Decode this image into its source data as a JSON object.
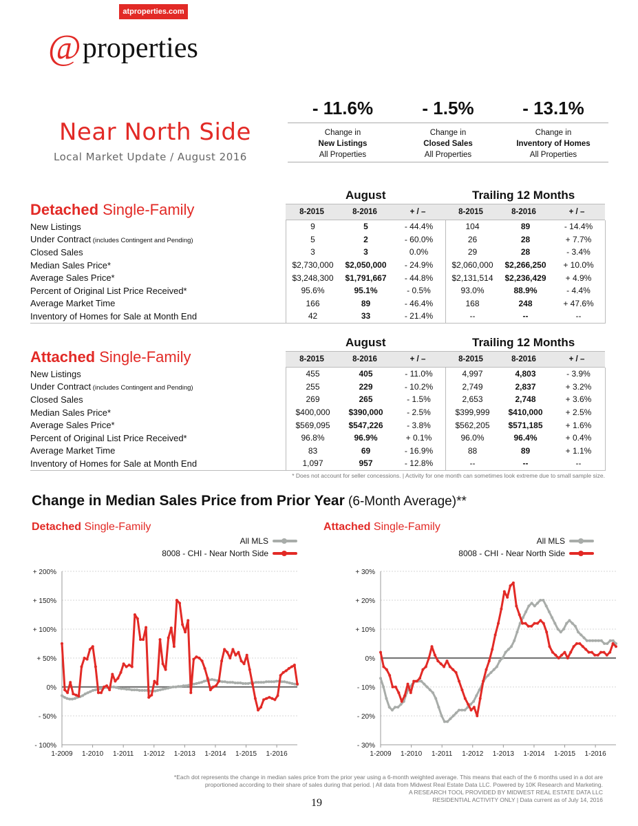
{
  "header": {
    "url": "atproperties.com",
    "logo_at": "@",
    "logo_word": "properties"
  },
  "summary": [
    {
      "value": "- 11.6%",
      "line1": "Change in",
      "line2": "New Listings",
      "line3": "All Properties"
    },
    {
      "value": "- 1.5%",
      "line1": "Change in",
      "line2": "Closed Sales",
      "line3": "All Properties"
    },
    {
      "value": "- 13.1%",
      "line1": "Change in",
      "line2": "Inventory of Homes",
      "line3": "All Properties"
    }
  ],
  "area": {
    "title": "Near North Side",
    "subtitle": "Local Market Update / August 2016"
  },
  "groups": {
    "month": "August",
    "trailing": "Trailing 12 Months"
  },
  "columns": [
    "8-2015",
    "8-2016",
    "+ / –",
    "8-2015",
    "8-2016",
    "+ / –"
  ],
  "detached": {
    "title_bold": "Detached",
    "title_rest": " Single-Family",
    "rows": [
      {
        "label": "New Listings",
        "note": "",
        "v": [
          "9",
          "5",
          "- 44.4%",
          "104",
          "89",
          "- 14.4%"
        ]
      },
      {
        "label": "Under Contract",
        "note": " (includes Contingent and Pending)",
        "v": [
          "5",
          "2",
          "- 60.0%",
          "26",
          "28",
          "+ 7.7%"
        ]
      },
      {
        "label": "Closed Sales",
        "note": "",
        "v": [
          "3",
          "3",
          "0.0%",
          "29",
          "28",
          "- 3.4%"
        ]
      },
      {
        "label": "Median Sales Price*",
        "note": "",
        "v": [
          "$2,730,000",
          "$2,050,000",
          "- 24.9%",
          "$2,060,000",
          "$2,266,250",
          "+ 10.0%"
        ]
      },
      {
        "label": "Average Sales Price*",
        "note": "",
        "v": [
          "$3,248,300",
          "$1,791,667",
          "- 44.8%",
          "$2,131,514",
          "$2,236,429",
          "+ 4.9%"
        ]
      },
      {
        "label": "Percent of Original List Price Received*",
        "note": "",
        "v": [
          "95.6%",
          "95.1%",
          "- 0.5%",
          "93.0%",
          "88.9%",
          "- 4.4%"
        ]
      },
      {
        "label": "Average Market Time",
        "note": "",
        "v": [
          "166",
          "89",
          "- 46.4%",
          "168",
          "248",
          "+ 47.6%"
        ]
      },
      {
        "label": "Inventory of Homes for Sale at Month End",
        "note": "",
        "v": [
          "42",
          "33",
          "- 21.4%",
          "--",
          "--",
          "--"
        ]
      }
    ]
  },
  "attached": {
    "title_bold": "Attached",
    "title_rest": " Single-Family",
    "rows": [
      {
        "label": "New Listings",
        "note": "",
        "v": [
          "455",
          "405",
          "- 11.0%",
          "4,997",
          "4,803",
          "- 3.9%"
        ]
      },
      {
        "label": "Under Contract",
        "note": " (includes Contingent and Pending)",
        "v": [
          "255",
          "229",
          "- 10.2%",
          "2,749",
          "2,837",
          "+ 3.2%"
        ]
      },
      {
        "label": "Closed Sales",
        "note": "",
        "v": [
          "269",
          "265",
          "- 1.5%",
          "2,653",
          "2,748",
          "+ 3.6%"
        ]
      },
      {
        "label": "Median Sales Price*",
        "note": "",
        "v": [
          "$400,000",
          "$390,000",
          "- 2.5%",
          "$399,999",
          "$410,000",
          "+ 2.5%"
        ]
      },
      {
        "label": "Average Sales Price*",
        "note": "",
        "v": [
          "$569,095",
          "$547,226",
          "- 3.8%",
          "$562,205",
          "$571,185",
          "+ 1.6%"
        ]
      },
      {
        "label": "Percent of Original List Price Received*",
        "note": "",
        "v": [
          "96.8%",
          "96.9%",
          "+ 0.1%",
          "96.0%",
          "96.4%",
          "+ 0.4%"
        ]
      },
      {
        "label": "Average Market Time",
        "note": "",
        "v": [
          "83",
          "69",
          "- 16.9%",
          "88",
          "89",
          "+ 1.1%"
        ]
      },
      {
        "label": "Inventory of Homes for Sale at Month End",
        "note": "",
        "v": [
          "1,097",
          "957",
          "- 12.8%",
          "--",
          "--",
          "--"
        ]
      }
    ]
  },
  "table_note": "* Does not account for seller concessions.  |  Activity for one month can sometimes look extreme due to small sample size.",
  "charts_section": {
    "title": "Change in Median Sales Price from Prior Year",
    "title_suffix": " (6-Month Average)**"
  },
  "legend": {
    "all_mls": "All MLS",
    "local": "8008 - CHI - Near North Side"
  },
  "colors": {
    "accent": "#e22a26",
    "all_mls": "#a8aca9",
    "axis": "#777777"
  },
  "chart_data": [
    {
      "type": "line",
      "title_bold": "Detached",
      "title_rest": " Single-Family",
      "ylim": [
        -100,
        200
      ],
      "yticks": [
        200,
        150,
        100,
        50,
        0,
        -50,
        -100
      ],
      "ytick_labels": [
        "+ 200%",
        "+ 150%",
        "+ 100%",
        "+ 50%",
        "0%",
        "- 50%",
        "- 100%"
      ],
      "xlim": [
        2009,
        2016.67
      ],
      "xticks": [
        2009,
        2010,
        2011,
        2012,
        2013,
        2014,
        2015,
        2016
      ],
      "xtick_labels": [
        "1-2009",
        "1-2010",
        "1-2011",
        "1-2012",
        "1-2013",
        "1-2014",
        "1-2015",
        "1-2016"
      ],
      "series": [
        {
          "name": "All MLS",
          "color": "#a8aca9",
          "values": [
            -15,
            -18,
            -20,
            -21,
            -21,
            -20,
            -18,
            -17,
            -15,
            -12,
            -10,
            -8,
            -6,
            -5,
            -4,
            -3,
            -2,
            -1,
            -1,
            0,
            0,
            -1,
            -2,
            -3,
            -3,
            -4,
            -4,
            -5,
            -5,
            -5,
            -6,
            -6,
            -6,
            -6,
            -7,
            -7,
            -7,
            -6,
            -5,
            -4,
            -3,
            -2,
            -1,
            0,
            0,
            1,
            1,
            2,
            2,
            3,
            4,
            5,
            6,
            7,
            8,
            10,
            11,
            12,
            13,
            12,
            11,
            10,
            9,
            9,
            8,
            8,
            8,
            7,
            7,
            7,
            6,
            6,
            6,
            7,
            7,
            8,
            8,
            8,
            8,
            9,
            9,
            9,
            9,
            10,
            10,
            9,
            9,
            8,
            7,
            6,
            5,
            4
          ]
        },
        {
          "name": "8008 - CHI - Near North Side",
          "color": "#e22a26",
          "values": [
            75,
            -5,
            -10,
            8,
            -12,
            -14,
            -16,
            35,
            50,
            48,
            65,
            70,
            35,
            -10,
            -10,
            0,
            2,
            -5,
            22,
            10,
            15,
            25,
            40,
            35,
            38,
            35,
            125,
            118,
            82,
            82,
            103,
            -18,
            -14,
            10,
            5,
            82,
            40,
            30,
            85,
            102,
            70,
            150,
            145,
            108,
            95,
            115,
            -10,
            48,
            52,
            50,
            45,
            32,
            15,
            -5,
            0,
            2,
            10,
            45,
            65,
            60,
            50,
            65,
            55,
            60,
            45,
            40,
            55,
            30,
            5,
            -20,
            -40,
            -35,
            -22,
            -20,
            -18,
            -20,
            -22,
            -15,
            20,
            25,
            28,
            32,
            35,
            38,
            5
          ]
        }
      ]
    },
    {
      "type": "line",
      "title_bold": "Attached",
      "title_rest": " Single-Family",
      "ylim": [
        -30,
        30
      ],
      "yticks": [
        30,
        20,
        10,
        0,
        -10,
        -20,
        -30
      ],
      "ytick_labels": [
        "+ 30%",
        "+ 20%",
        "+ 10%",
        "0%",
        "- 10%",
        "- 20%",
        "- 30%"
      ],
      "xlim": [
        2009,
        2016.67
      ],
      "xticks": [
        2009,
        2010,
        2011,
        2012,
        2013,
        2014,
        2015,
        2016
      ],
      "xtick_labels": [
        "1-2009",
        "1-2010",
        "1-2011",
        "1-2012",
        "1-2013",
        "1-2014",
        "1-2015",
        "1-2016"
      ],
      "series": [
        {
          "name": "All MLS",
          "color": "#a8aca9",
          "values": [
            -7,
            -10,
            -14,
            -17,
            -18,
            -17,
            -17,
            -16,
            -15,
            -12,
            -10,
            -9,
            -8,
            -8,
            -8,
            -9,
            -10,
            -11,
            -12,
            -14,
            -17,
            -20,
            -22,
            -22,
            -21,
            -20,
            -19,
            -18,
            -18,
            -18,
            -17,
            -16,
            -15,
            -13,
            -11,
            -9,
            -7,
            -6,
            -5,
            -4,
            -3,
            -1,
            0,
            2,
            3,
            4,
            6,
            9,
            12,
            14,
            16,
            18,
            19,
            18,
            19,
            20,
            20,
            18,
            16,
            14,
            12,
            10,
            9,
            10,
            12,
            13,
            12,
            11,
            9,
            8,
            7,
            6,
            6,
            6,
            6,
            6,
            6,
            5,
            5,
            6,
            6,
            5
          ]
        },
        {
          "name": "8008 - CHI - Near North Side",
          "color": "#e22a26",
          "values": [
            2,
            -3,
            -4,
            -6,
            -10,
            -10,
            -12,
            -15,
            -13,
            -9,
            -12,
            -8,
            -8,
            -7,
            -4,
            -3,
            0,
            4,
            1,
            -1,
            -2,
            -3,
            -1,
            -3,
            -4,
            -5,
            -8,
            -11,
            -14,
            -16,
            -18,
            -17,
            -20,
            -14,
            -8,
            -4,
            -1,
            3,
            8,
            12,
            17,
            23,
            21,
            25,
            26,
            18,
            15,
            12,
            12,
            11,
            11,
            12,
            12,
            13,
            12,
            9,
            4,
            2,
            1,
            0,
            1,
            2,
            0,
            2,
            4,
            5,
            5,
            4,
            3,
            2,
            2,
            1,
            1,
            2,
            2,
            1,
            2,
            5,
            4
          ]
        }
      ]
    }
  ],
  "footer": {
    "line1": "*Each dot represents the change in median sales price from the prior year using a 6-month weighted average. This means that each of the 6 months used in a dot are",
    "line2": "proportioned according to their share of sales during that period.  |  All data from Midwest Real Estate Data LLC. Powered by 10K Research and Marketing.",
    "line3": "A RESEARCH TOOL PROVIDED BY MIDWEST REAL ESTATE DATA LLC",
    "line4": "RESIDENTIAL ACTIVITY ONLY  |  Data current as of July 14, 2016",
    "page": "19"
  }
}
